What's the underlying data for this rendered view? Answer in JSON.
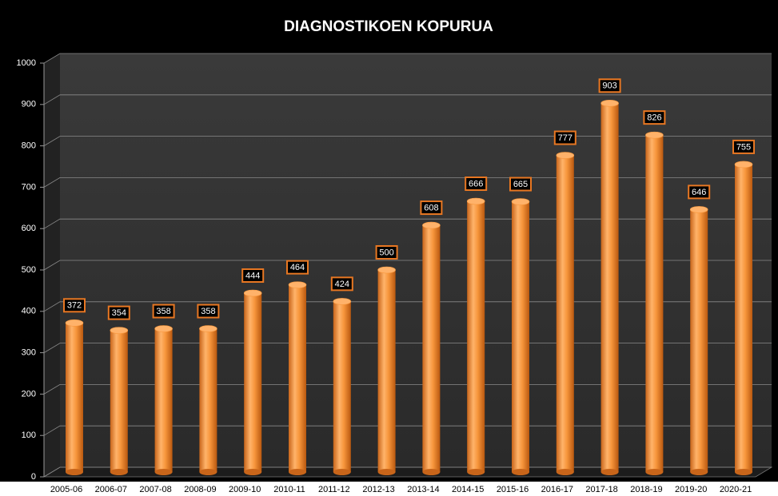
{
  "chart_data": {
    "type": "bar",
    "title": "DIAGNOSTIKOEN KOPURUA",
    "categories": [
      "2005-06",
      "2006-07",
      "2007-08",
      "2008-09",
      "2009-10",
      "2010-11",
      "2011-12",
      "2012-13",
      "2013-14",
      "2014-15",
      "2015-16",
      "2016-17",
      "2017-18",
      "2018-19",
      "2019-20",
      "2020-21"
    ],
    "values": [
      372,
      354,
      358,
      358,
      444,
      464,
      424,
      500,
      608,
      666,
      665,
      777,
      903,
      826,
      646,
      755
    ],
    "color": "#f7963c",
    "ylim": [
      0,
      1000
    ],
    "yticks": [
      0,
      100,
      200,
      300,
      400,
      500,
      600,
      700,
      800,
      900,
      1000
    ],
    "grid": true
  }
}
